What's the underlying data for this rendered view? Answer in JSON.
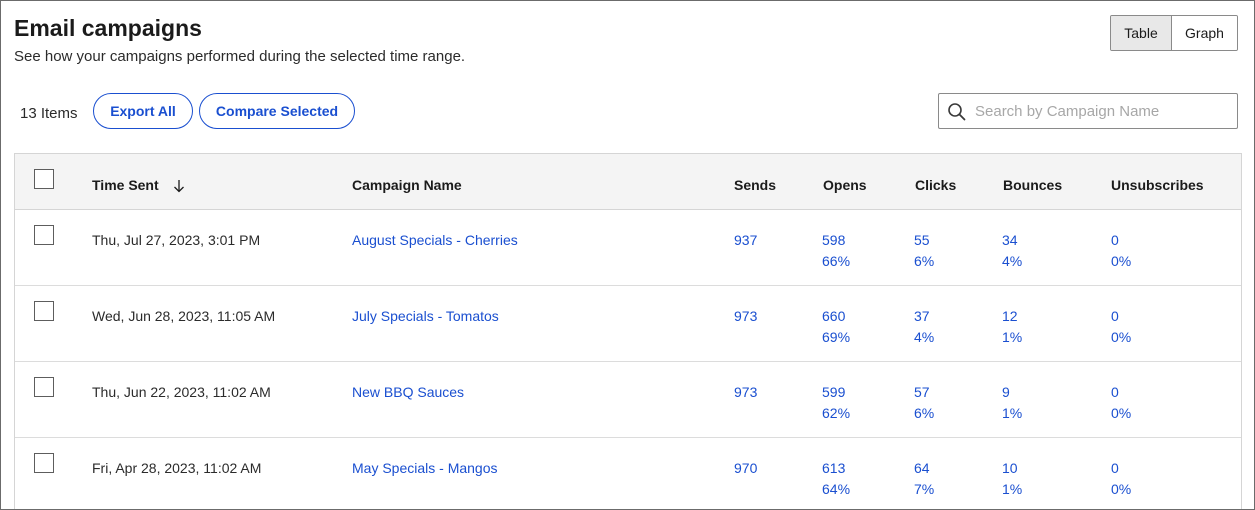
{
  "header": {
    "title": "Email campaigns",
    "subtitle": "See how your campaigns performed during the selected time range."
  },
  "view_toggle": {
    "table_label": "Table",
    "graph_label": "Graph",
    "selected": "Table"
  },
  "toolbar": {
    "items_count": "13 Items",
    "export_all_label": "Export All",
    "compare_selected_label": "Compare Selected"
  },
  "search": {
    "placeholder": "Search by Campaign Name",
    "value": ""
  },
  "table": {
    "columns": [
      "Time Sent",
      "Campaign Name",
      "Sends",
      "Opens",
      "Clicks",
      "Bounces",
      "Unsubscribes"
    ],
    "sort_column": "Time Sent",
    "sort_direction": "descending",
    "rows": [
      {
        "time_sent": "Thu, Jul 27, 2023, 3:01 PM",
        "campaign_name": "August Specials - Cherries",
        "sends": "937",
        "opens": "598",
        "opens_pct": "66%",
        "clicks": "55",
        "clicks_pct": "6%",
        "bounces": "34",
        "bounces_pct": "4%",
        "unsubscribes": "0",
        "unsubscribes_pct": "0%"
      },
      {
        "time_sent": "Wed, Jun 28, 2023, 11:05 AM",
        "campaign_name": "July Specials - Tomatos",
        "sends": "973",
        "opens": "660",
        "opens_pct": "69%",
        "clicks": "37",
        "clicks_pct": "4%",
        "bounces": "12",
        "bounces_pct": "1%",
        "unsubscribes": "0",
        "unsubscribes_pct": "0%"
      },
      {
        "time_sent": "Thu, Jun 22, 2023, 11:02 AM",
        "campaign_name": "New BBQ Sauces",
        "sends": "973",
        "opens": "599",
        "opens_pct": "62%",
        "clicks": "57",
        "clicks_pct": "6%",
        "bounces": "9",
        "bounces_pct": "1%",
        "unsubscribes": "0",
        "unsubscribes_pct": "0%"
      },
      {
        "time_sent": "Fri, Apr 28, 2023, 11:02 AM",
        "campaign_name": "May Specials - Mangos",
        "sends": "970",
        "opens": "613",
        "opens_pct": "64%",
        "clicks": "64",
        "clicks_pct": "7%",
        "bounces": "10",
        "bounces_pct": "1%",
        "unsubscribes": "0",
        "unsubscribes_pct": "0%"
      }
    ]
  },
  "colors": {
    "link": "#1a4fd0",
    "text": "#1b1b1b",
    "header_bg": "#f4f4f4",
    "toggle_selected_bg": "#e8e8e8"
  },
  "icons": {
    "search": "search-icon",
    "sort": "sort-arrow-down-icon",
    "checkbox": "checkbox-icon"
  }
}
